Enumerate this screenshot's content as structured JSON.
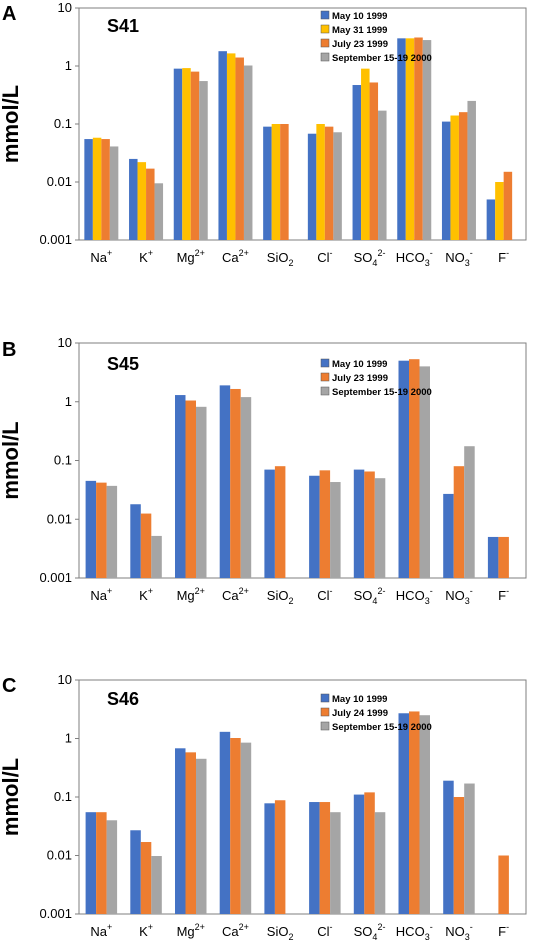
{
  "colors": {
    "blue": "#4472C4",
    "yellow": "#FFC000",
    "orange": "#ED7D31",
    "gray": "#A5A5A5"
  },
  "chart_data": [
    {
      "type": "bar",
      "panel": "A",
      "title": "S41",
      "ylabel": "mmol/L",
      "yscale": "log",
      "ylim": [
        0.001,
        10
      ],
      "yticks": [
        "0.001",
        "0.01",
        "0.1",
        "1",
        "10"
      ],
      "categories": [
        {
          "base": "Na",
          "sup": "+"
        },
        {
          "base": "K",
          "sup": "+"
        },
        {
          "base": "Mg",
          "sup": "2+"
        },
        {
          "base": "Ca",
          "sup": "2+"
        },
        {
          "base": "SiO",
          "sub": "2"
        },
        {
          "base": "Cl",
          "sup": "-"
        },
        {
          "base": "SO",
          "sub": "4",
          "sup": "2-"
        },
        {
          "base": "HCO",
          "sub": "3",
          "sup": "-"
        },
        {
          "base": "NO",
          "sub": "3",
          "sup": "-"
        },
        {
          "base": "F",
          "sup": "-"
        }
      ],
      "legend_position": "top-center",
      "series": [
        {
          "name": "May 10 1999",
          "color": "blue",
          "values": [
            0.055,
            0.025,
            0.9,
            1.8,
            0.09,
            0.068,
            0.47,
            3.0,
            0.11,
            0.005
          ]
        },
        {
          "name": "May 31 1999",
          "color": "yellow",
          "values": [
            0.058,
            0.022,
            0.92,
            1.65,
            0.1,
            0.1,
            0.9,
            3.0,
            0.14,
            0.01
          ]
        },
        {
          "name": "July 23 1999",
          "color": "orange",
          "values": [
            0.055,
            0.017,
            0.8,
            1.4,
            0.1,
            0.09,
            0.52,
            3.1,
            0.16,
            0.015
          ]
        },
        {
          "name": "September 15-19 2000",
          "color": "gray",
          "values": [
            0.041,
            0.0095,
            0.55,
            1.02,
            null,
            0.072,
            0.17,
            2.8,
            0.25,
            null
          ]
        }
      ]
    },
    {
      "type": "bar",
      "panel": "B",
      "title": "S45",
      "ylabel": "mmol/L",
      "yscale": "log",
      "ylim": [
        0.001,
        10
      ],
      "yticks": [
        "0.001",
        "0.01",
        "0.1",
        "1",
        "10"
      ],
      "categories": [
        {
          "base": "Na",
          "sup": "+"
        },
        {
          "base": "K",
          "sup": "+"
        },
        {
          "base": "Mg",
          "sup": "2+"
        },
        {
          "base": "Ca",
          "sup": "2+"
        },
        {
          "base": "SiO",
          "sub": "2"
        },
        {
          "base": "Cl",
          "sup": "-"
        },
        {
          "base": "SO",
          "sub": "4",
          "sup": "2-"
        },
        {
          "base": "HCO",
          "sub": "3",
          "sup": "-"
        },
        {
          "base": "NO",
          "sub": "3",
          "sup": "-"
        },
        {
          "base": "F",
          "sup": "-"
        }
      ],
      "legend_position": "top-center",
      "series": [
        {
          "name": "May 10 1999",
          "color": "blue",
          "values": [
            0.045,
            0.018,
            1.3,
            1.9,
            0.07,
            0.055,
            0.07,
            5.0,
            0.027,
            0.005
          ]
        },
        {
          "name": "July 23 1999",
          "color": "orange",
          "values": [
            0.042,
            0.0125,
            1.05,
            1.65,
            0.08,
            0.068,
            0.065,
            5.3,
            0.08,
            0.005
          ]
        },
        {
          "name": "September 15-19 2000",
          "color": "gray",
          "values": [
            0.037,
            0.0052,
            0.82,
            1.2,
            null,
            0.043,
            0.05,
            4.0,
            0.175,
            null
          ]
        }
      ]
    },
    {
      "type": "bar",
      "panel": "C",
      "title": "S46",
      "ylabel": "mmol/L",
      "yscale": "log",
      "ylim": [
        0.001,
        10
      ],
      "yticks": [
        "0.001",
        "0.01",
        "0.1",
        "1",
        "10"
      ],
      "categories": [
        {
          "base": "Na",
          "sup": "+"
        },
        {
          "base": "K",
          "sup": "+"
        },
        {
          "base": "Mg",
          "sup": "2+"
        },
        {
          "base": "Ca",
          "sup": "2+"
        },
        {
          "base": "SiO",
          "sub": "2"
        },
        {
          "base": "Cl",
          "sup": "-"
        },
        {
          "base": "SO",
          "sub": "4",
          "sup": "2-"
        },
        {
          "base": "HCO",
          "sub": "3",
          "sup": "-"
        },
        {
          "base": "NO",
          "sub": "3",
          "sup": "-"
        },
        {
          "base": "F",
          "sup": "-"
        }
      ],
      "legend_position": "top-center",
      "series": [
        {
          "name": "May 10 1999",
          "color": "blue",
          "values": [
            0.055,
            0.027,
            0.68,
            1.3,
            0.078,
            0.082,
            0.11,
            2.7,
            0.19,
            null
          ]
        },
        {
          "name": "July 24 1999",
          "color": "orange",
          "values": [
            0.055,
            0.017,
            0.58,
            1.02,
            0.088,
            0.082,
            0.12,
            2.9,
            0.1,
            0.01
          ]
        },
        {
          "name": "September 15-19 2000",
          "color": "gray",
          "values": [
            0.04,
            0.0098,
            0.45,
            0.85,
            null,
            0.055,
            0.055,
            2.5,
            0.17,
            null
          ]
        }
      ]
    }
  ]
}
